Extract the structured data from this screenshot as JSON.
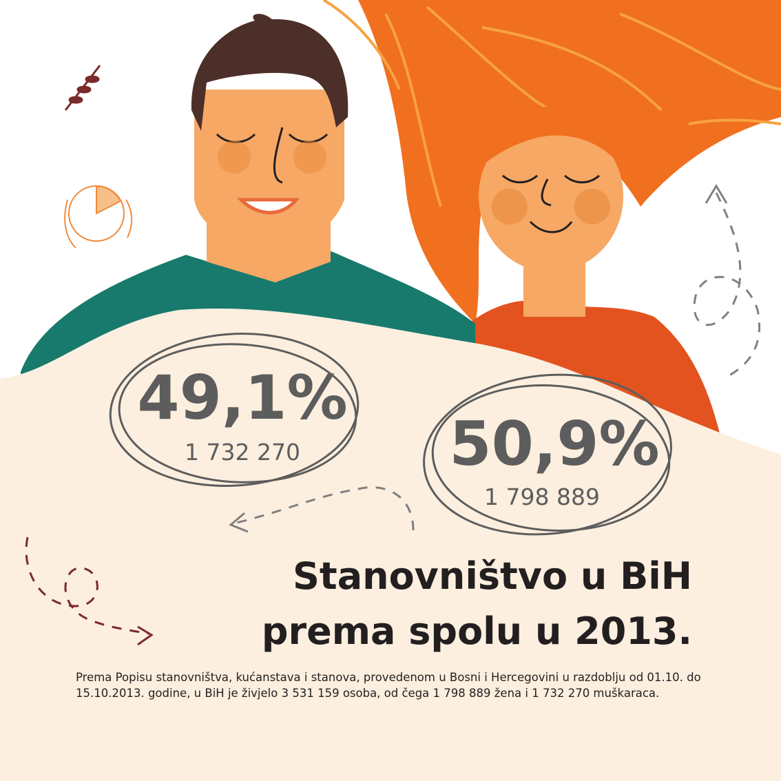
{
  "stats": [
    {
      "percent": "49,1%",
      "count": "1 732 270"
    },
    {
      "percent": "50,9%",
      "count": "1 798 889"
    }
  ],
  "title": [
    "Stanovništvo u BiH",
    "prema spolu u 2013."
  ],
  "description": "Prema Popisu stanovništva, kućanstava i stanova, provedenom u Bosni i Hercegovini u razdoblju od 01.10. do 15.10.2013. godine, u BiH je živjelo 3 531 159 osoba, od čega 1 798 889 žena i 1 732 270 muškaraca."
}
